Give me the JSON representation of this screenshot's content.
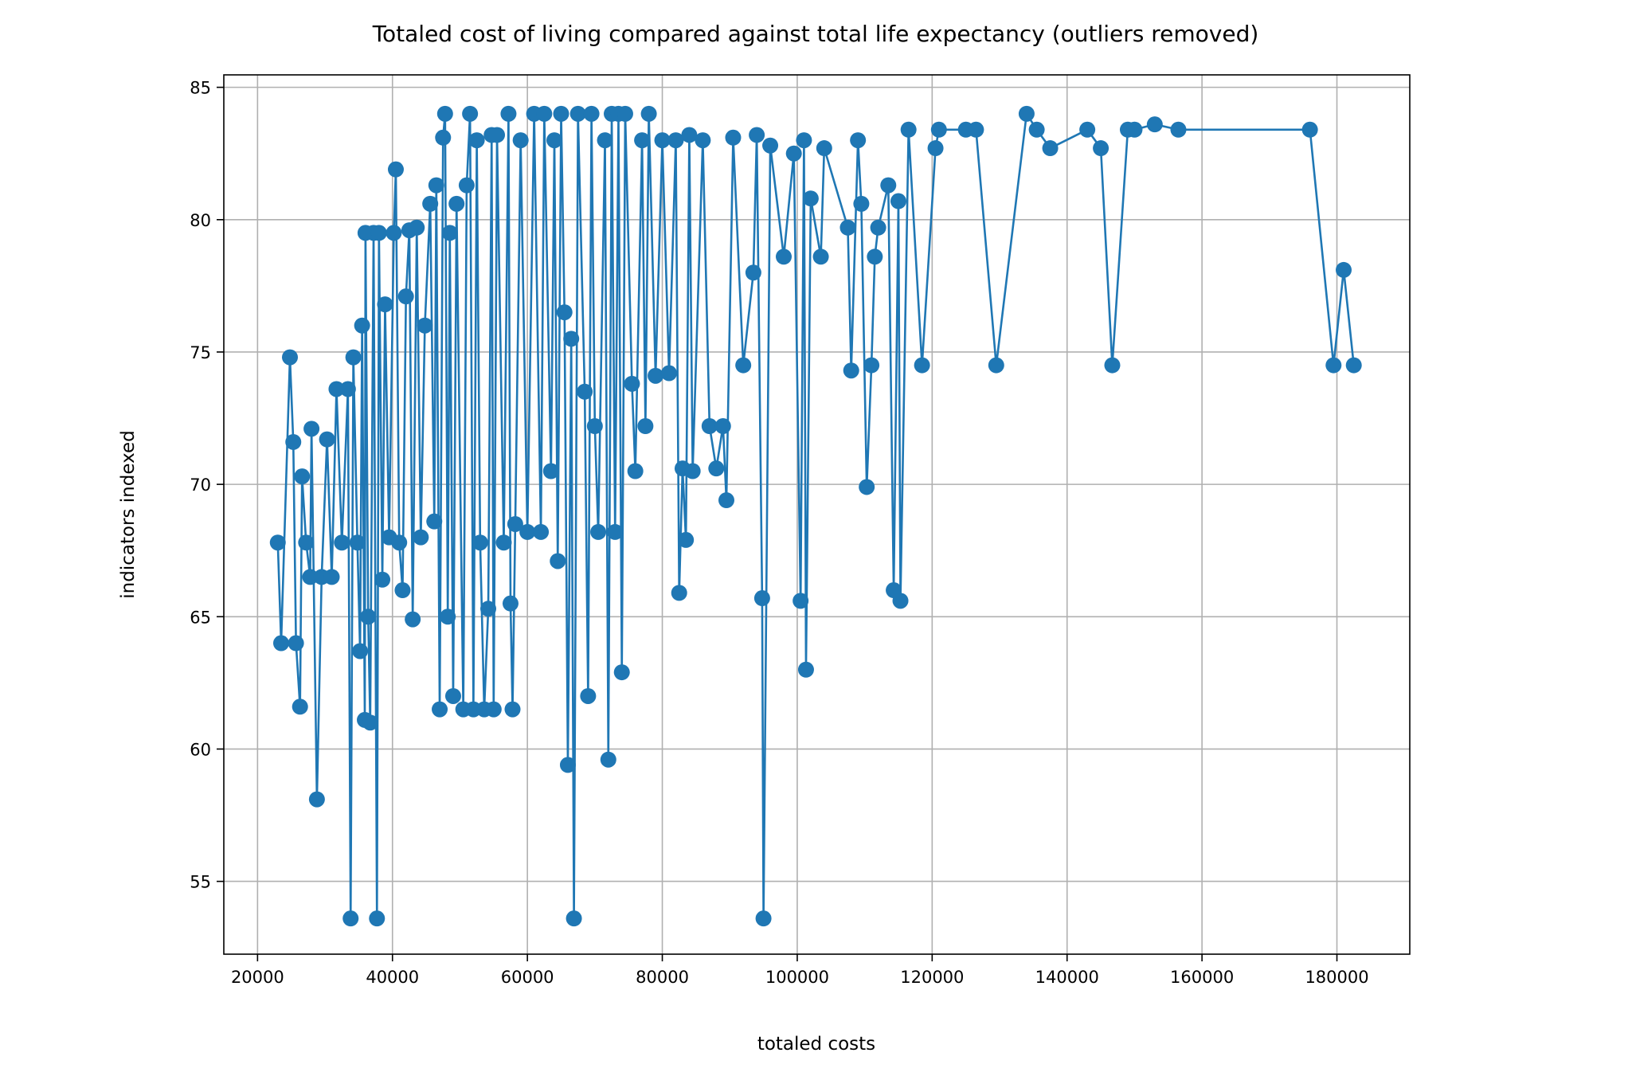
{
  "chart_data": {
    "type": "line",
    "title": "Totaled cost of living compared against total life expectancy (outliers removed)",
    "xlabel": "totaled costs",
    "ylabel": "indicators indexed",
    "color": "#1f77b4",
    "marker": true,
    "grid": true,
    "xlim": [
      15000,
      190800
    ],
    "ylim": [
      52.25,
      85.47
    ],
    "xticks": [
      20000,
      40000,
      60000,
      80000,
      100000,
      120000,
      140000,
      160000,
      180000
    ],
    "yticks": [
      55,
      60,
      65,
      70,
      75,
      80,
      85
    ],
    "x": [
      23000,
      23500,
      24800,
      25300,
      25700,
      26300,
      26600,
      27200,
      27800,
      28000,
      28800,
      29500,
      30300,
      31000,
      31700,
      32500,
      33400,
      33800,
      34200,
      34800,
      35200,
      35500,
      35900,
      36000,
      36400,
      36700,
      37200,
      37700,
      38000,
      38500,
      38900,
      39500,
      40200,
      40500,
      41000,
      41500,
      42000,
      42500,
      43000,
      43600,
      44200,
      44800,
      45600,
      46200,
      46500,
      47000,
      47500,
      47800,
      48200,
      48500,
      49000,
      49500,
      50500,
      51000,
      51500,
      52000,
      52500,
      53000,
      53600,
      54200,
      54700,
      55000,
      55500,
      56500,
      57200,
      57500,
      57800,
      58200,
      59000,
      60000,
      61000,
      62000,
      62500,
      63500,
      64000,
      64500,
      65000,
      65500,
      66000,
      66500,
      66900,
      67500,
      68500,
      69000,
      69500,
      70000,
      70500,
      71500,
      72000,
      72500,
      73000,
      73500,
      74000,
      74500,
      75500,
      76000,
      77000,
      77500,
      78000,
      79000,
      80000,
      81000,
      82000,
      82500,
      83000,
      83500,
      84000,
      84500,
      86000,
      87000,
      88000,
      89000,
      89500,
      90500,
      92000,
      93500,
      94000,
      94800,
      95000,
      96000,
      98000,
      99500,
      100500,
      101000,
      101300,
      102000,
      103500,
      104000,
      107500,
      108000,
      109000,
      109500,
      110300,
      111000,
      111500,
      112000,
      113500,
      114300,
      115000,
      115300,
      116500,
      118500,
      120500,
      121000,
      125000,
      126500,
      129500,
      134000,
      135500,
      137500,
      143000,
      145000,
      146700,
      149000,
      150000,
      153000,
      156500,
      176000,
      179500,
      181000,
      182500
    ],
    "values": [
      67.8,
      64,
      74.8,
      71.6,
      64,
      61.6,
      70.3,
      67.8,
      66.5,
      72.1,
      58.1,
      66.5,
      71.7,
      66.5,
      73.6,
      67.8,
      73.6,
      53.6,
      74.8,
      67.8,
      63.7,
      76,
      61.1,
      79.5,
      65,
      61,
      79.5,
      53.6,
      79.5,
      66.4,
      76.8,
      68,
      79.5,
      81.9,
      67.8,
      66,
      77.1,
      79.6,
      64.9,
      79.7,
      68,
      76,
      80.6,
      68.6,
      81.3,
      61.5,
      83.1,
      84,
      65,
      79.5,
      62,
      80.6,
      61.5,
      81.3,
      84,
      61.5,
      83,
      67.8,
      61.5,
      65.3,
      83.2,
      61.5,
      83.2,
      67.8,
      84,
      65.5,
      61.5,
      68.5,
      83,
      68.2,
      84,
      68.2,
      84,
      70.5,
      83,
      67.1,
      84,
      76.5,
      59.4,
      75.5,
      53.6,
      84,
      73.5,
      62,
      84,
      72.2,
      68.2,
      83,
      59.6,
      84,
      68.2,
      84,
      62.9,
      84,
      73.8,
      70.5,
      83,
      72.2,
      84,
      74.1,
      83,
      74.2,
      83,
      65.9,
      70.6,
      67.9,
      83.2,
      70.5,
      83,
      72.2,
      70.6,
      72.2,
      69.4,
      83.1,
      74.5,
      78,
      83.2,
      65.7,
      53.6,
      82.8,
      78.6,
      82.5,
      65.6,
      83,
      63,
      80.8,
      78.6,
      82.7,
      79.7,
      74.3,
      83,
      80.6,
      69.9,
      74.5,
      78.6,
      79.7,
      81.3,
      66,
      80.7,
      65.6,
      83.4,
      74.5,
      82.7,
      83.4,
      83.4,
      83.4,
      74.5,
      84,
      83.4,
      82.7,
      83.4,
      82.7,
      74.5,
      83.4,
      83.4,
      83.6,
      83.4,
      83.4,
      74.5,
      78.1,
      74.5
    ]
  }
}
